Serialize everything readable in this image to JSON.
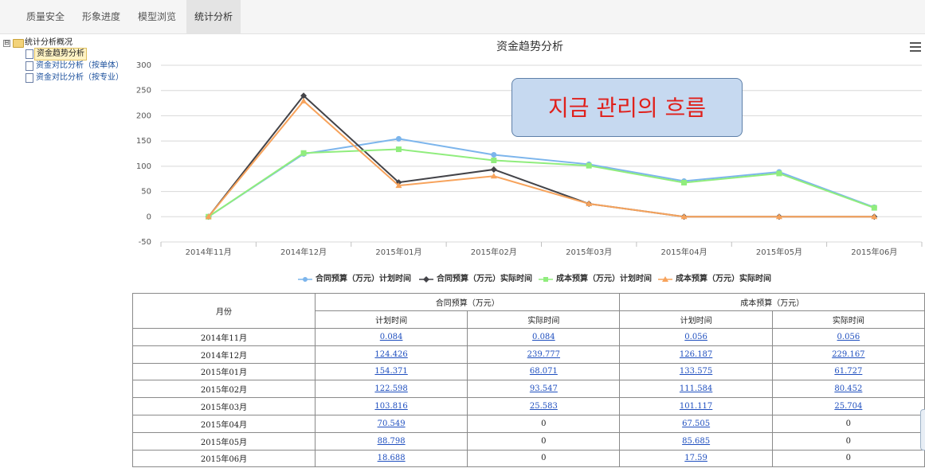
{
  "tabs": [
    {
      "label": "质量安全",
      "active": false
    },
    {
      "label": "形象进度",
      "active": false
    },
    {
      "label": "模型浏览",
      "active": false
    },
    {
      "label": "统计分析",
      "active": true
    }
  ],
  "tree": {
    "toggle": "⊟",
    "root": "统计分析概况",
    "items": [
      {
        "label": "资金趋势分析",
        "selected": true
      },
      {
        "label": "资金对比分析（按单体）",
        "selected": false
      },
      {
        "label": "资金对比分析（按专业）",
        "selected": false
      }
    ]
  },
  "overlay_text": "지금 관리의 흐름",
  "chart_data": {
    "type": "line",
    "title": "资金趋势分析",
    "categories": [
      "2014年11月",
      "2014年12月",
      "2015年01月",
      "2015年02月",
      "2015年03月",
      "2015年04月",
      "2015年05月",
      "2015年06月"
    ],
    "ylim": [
      -50,
      300
    ],
    "yticks": [
      -50,
      0,
      50,
      100,
      150,
      200,
      250,
      300
    ],
    "grid": true,
    "legend_position": "bottom",
    "series": [
      {
        "name": "合同预算（万元）计划时间",
        "color": "#7cb5ec",
        "marker": "circle",
        "values": [
          0.084,
          124.426,
          154.371,
          122.598,
          103.816,
          70.549,
          88.798,
          18.688
        ]
      },
      {
        "name": "合同预算（万元）实际时间",
        "color": "#434348",
        "marker": "diamond",
        "values": [
          0.084,
          239.777,
          68.071,
          93.547,
          25.583,
          0,
          0,
          0
        ]
      },
      {
        "name": "成本预算（万元）计划时间",
        "color": "#90ed7d",
        "marker": "square",
        "values": [
          0.056,
          126.187,
          133.575,
          111.584,
          101.117,
          67.505,
          85.685,
          17.59
        ]
      },
      {
        "name": "成本预算（万元）实际时间",
        "color": "#f7a35c",
        "marker": "triangle",
        "values": [
          0.056,
          229.167,
          61.727,
          80.452,
          25.704,
          0,
          0,
          0
        ]
      }
    ]
  },
  "table": {
    "month_header": "月份",
    "group_headers": [
      "合同预算（万元）",
      "成本预算（万元）"
    ],
    "sub_headers": [
      "计划时间",
      "实际时间",
      "计划时间",
      "实际时间"
    ],
    "rows": [
      {
        "month": "2014年11月",
        "cells": [
          "0.084",
          "0.084",
          "0.056",
          "0.056"
        ]
      },
      {
        "month": "2014年12月",
        "cells": [
          "124.426",
          "239.777",
          "126.187",
          "229.167"
        ]
      },
      {
        "month": "2015年01月",
        "cells": [
          "154.371",
          "68.071",
          "133.575",
          "61.727"
        ]
      },
      {
        "month": "2015年02月",
        "cells": [
          "122.598",
          "93.547",
          "111.584",
          "80.452"
        ]
      },
      {
        "month": "2015年03月",
        "cells": [
          "103.816",
          "25.583",
          "101.117",
          "25.704"
        ]
      },
      {
        "month": "2015年04月",
        "cells": [
          "70.549",
          "0",
          "67.505",
          "0"
        ]
      },
      {
        "month": "2015年05月",
        "cells": [
          "88.798",
          "0",
          "85.685",
          "0"
        ]
      },
      {
        "month": "2015年06月",
        "cells": [
          "18.688",
          "0",
          "17.59",
          "0"
        ]
      }
    ]
  }
}
